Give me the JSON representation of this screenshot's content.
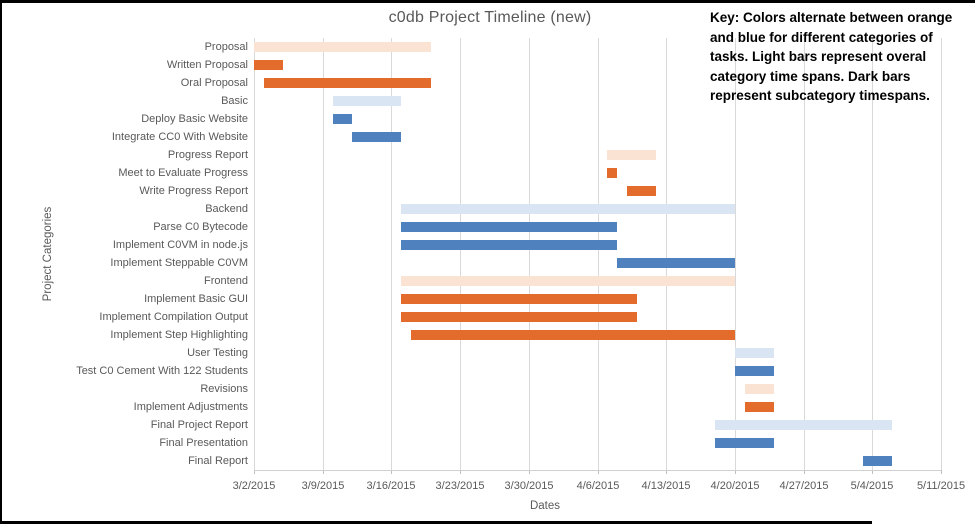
{
  "key_note": {
    "lines": [
      "Key: Colors alternate between orange",
      "and blue for different categories of",
      "tasks. Light bars represent overal",
      "category time spans. Dark bars",
      "represent subcategory timespans."
    ]
  },
  "chart_data": {
    "type": "gantt",
    "title": "c0db Project Timeline (new)",
    "xlabel": "Dates",
    "ylabel": "Project Categories",
    "x_tick_labels": [
      "3/2/2015",
      "3/9/2015",
      "3/16/2015",
      "3/23/2015",
      "3/30/2015",
      "4/6/2015",
      "4/13/2015",
      "4/20/2015",
      "4/27/2015",
      "5/4/2015",
      "5/11/2015"
    ],
    "x_range": [
      "3/2/2015",
      "5/11/2015"
    ],
    "grid": "vertical-weekly",
    "colors": {
      "orange_light": "#fae3d3",
      "orange_dark": "#e36c2c",
      "blue_light": "#dae5f3",
      "blue_dark": "#4e81bd"
    },
    "tasks": [
      {
        "label": "Proposal",
        "start": "3/2/2015",
        "end": "3/20/2015",
        "color": "orange_light"
      },
      {
        "label": "Written Proposal",
        "start": "3/2/2015",
        "end": "3/5/2015",
        "color": "orange_dark"
      },
      {
        "label": "Oral Proposal",
        "start": "3/3/2015",
        "end": "3/20/2015",
        "color": "orange_dark"
      },
      {
        "label": "Basic",
        "start": "3/10/2015",
        "end": "3/17/2015",
        "color": "blue_light"
      },
      {
        "label": "Deploy Basic Website",
        "start": "3/10/2015",
        "end": "3/12/2015",
        "color": "blue_dark"
      },
      {
        "label": "Integrate CC0 With Website",
        "start": "3/12/2015",
        "end": "3/17/2015",
        "color": "blue_dark"
      },
      {
        "label": "Progress Report",
        "start": "4/7/2015",
        "end": "4/12/2015",
        "color": "orange_light"
      },
      {
        "label": "Meet to Evaluate Progress",
        "start": "4/7/2015",
        "end": "4/8/2015",
        "color": "orange_dark"
      },
      {
        "label": "Write Progress Report",
        "start": "4/9/2015",
        "end": "4/12/2015",
        "color": "orange_dark"
      },
      {
        "label": "Backend",
        "start": "3/17/2015",
        "end": "4/20/2015",
        "color": "blue_light"
      },
      {
        "label": "Parse C0 Bytecode",
        "start": "3/17/2015",
        "end": "4/8/2015",
        "color": "blue_dark"
      },
      {
        "label": "Implement C0VM in node.js",
        "start": "3/17/2015",
        "end": "4/8/2015",
        "color": "blue_dark"
      },
      {
        "label": "Implement Steppable C0VM",
        "start": "4/8/2015",
        "end": "4/20/2015",
        "color": "blue_dark"
      },
      {
        "label": "Frontend",
        "start": "3/17/2015",
        "end": "4/20/2015",
        "color": "orange_light"
      },
      {
        "label": "Implement Basic GUI",
        "start": "3/17/2015",
        "end": "4/10/2015",
        "color": "orange_dark"
      },
      {
        "label": "Implement Compilation Output",
        "start": "3/17/2015",
        "end": "4/10/2015",
        "color": "orange_dark"
      },
      {
        "label": "Implement Step Highlighting",
        "start": "3/18/2015",
        "end": "4/20/2015",
        "color": "orange_dark"
      },
      {
        "label": "User Testing",
        "start": "4/20/2015",
        "end": "4/24/2015",
        "color": "blue_light"
      },
      {
        "label": "Test C0 Cement With 122 Students",
        "start": "4/20/2015",
        "end": "4/24/2015",
        "color": "blue_dark"
      },
      {
        "label": "Revisions",
        "start": "4/21/2015",
        "end": "4/24/2015",
        "color": "orange_light"
      },
      {
        "label": "Implement Adjustments",
        "start": "4/21/2015",
        "end": "4/24/2015",
        "color": "orange_dark"
      },
      {
        "label": "Final Project Report",
        "start": "4/18/2015",
        "end": "5/6/2015",
        "color": "blue_light"
      },
      {
        "label": "Final Presentation",
        "start": "4/18/2015",
        "end": "4/24/2015",
        "color": "blue_dark"
      },
      {
        "label": "Final Report",
        "start": "5/3/2015",
        "end": "5/6/2015",
        "color": "blue_dark"
      }
    ]
  }
}
